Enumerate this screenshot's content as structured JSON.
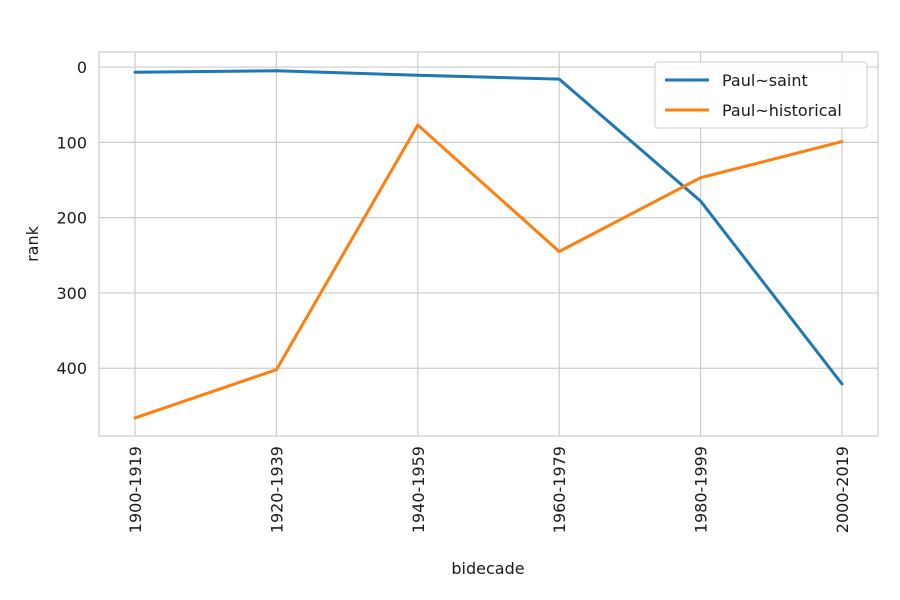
{
  "chart_data": {
    "type": "line",
    "title": "",
    "xlabel": "bidecade",
    "ylabel": "rank",
    "categories": [
      "1900-1919",
      "1920-1939",
      "1940-1959",
      "1960-1979",
      "1980-1999",
      "2000-2019"
    ],
    "y_ticks": [
      0,
      100,
      200,
      300,
      400
    ],
    "ylim": [
      -20,
      490
    ],
    "y_inverted": true,
    "grid": true,
    "legend_position": "top-right",
    "series": [
      {
        "name": "Paul~saint",
        "color": "#1f77b4",
        "values": [
          7,
          5,
          11,
          16,
          178,
          421
        ]
      },
      {
        "name": "Paul~historical",
        "color": "#ff7f0e",
        "values": [
          466,
          402,
          77,
          245,
          147,
          99
        ]
      }
    ]
  }
}
